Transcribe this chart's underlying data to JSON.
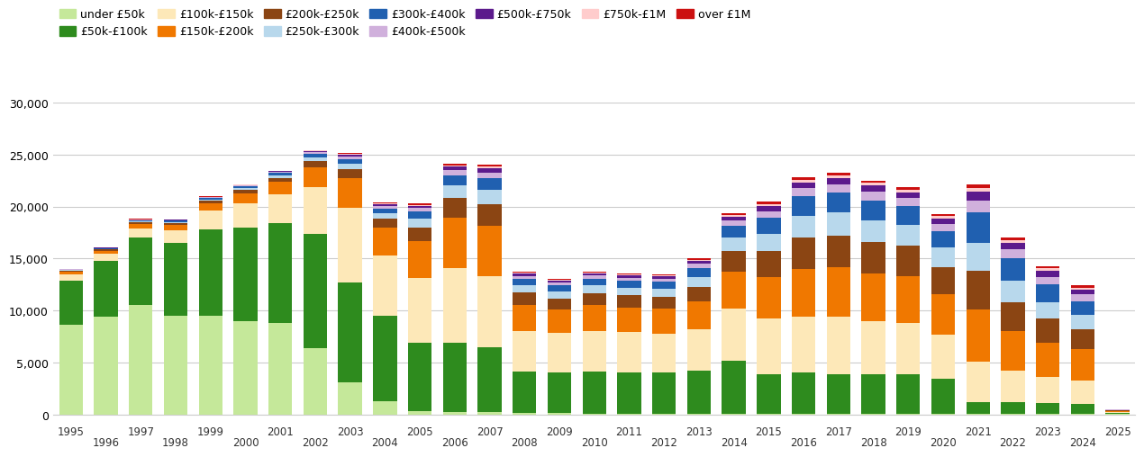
{
  "years": [
    1995,
    1996,
    1997,
    1998,
    1999,
    2000,
    2001,
    2002,
    2003,
    2004,
    2005,
    2006,
    2007,
    2008,
    2009,
    2010,
    2011,
    2012,
    2013,
    2014,
    2015,
    2016,
    2017,
    2018,
    2019,
    2020,
    2021,
    2022,
    2023,
    2024,
    2025
  ],
  "series": {
    "under_50k": [
      8600,
      9400,
      10500,
      9500,
      9500,
      9000,
      8800,
      6400,
      3100,
      1300,
      300,
      200,
      200,
      150,
      120,
      100,
      100,
      100,
      100,
      100,
      100,
      100,
      100,
      100,
      100,
      100,
      100,
      100,
      100,
      100,
      50
    ],
    "50k_100k": [
      4300,
      5400,
      6500,
      7000,
      8300,
      9000,
      9600,
      11000,
      9600,
      8200,
      6600,
      6700,
      6300,
      4000,
      3900,
      4000,
      3900,
      3900,
      4100,
      5100,
      3800,
      3900,
      3800,
      3800,
      3800,
      3300,
      1100,
      1100,
      1000,
      900,
      100
    ],
    "100k_150k": [
      600,
      650,
      900,
      1200,
      1800,
      2300,
      2800,
      4500,
      7200,
      5800,
      6200,
      7200,
      6800,
      3900,
      3800,
      3900,
      3900,
      3800,
      4000,
      5000,
      5300,
      5400,
      5500,
      5100,
      4900,
      4300,
      3900,
      3000,
      2500,
      2300,
      100
    ],
    "150k_200k": [
      250,
      280,
      430,
      530,
      700,
      950,
      1150,
      1900,
      2800,
      2700,
      3600,
      4800,
      4800,
      2500,
      2300,
      2500,
      2400,
      2400,
      2700,
      3500,
      4000,
      4600,
      4800,
      4600,
      4500,
      3900,
      5000,
      3800,
      3300,
      3000,
      100
    ],
    "200k_250k": [
      90,
      120,
      180,
      190,
      230,
      320,
      420,
      560,
      850,
      850,
      1250,
      1900,
      2100,
      1150,
      1050,
      1150,
      1150,
      1150,
      1400,
      2000,
      2500,
      3000,
      3000,
      3000,
      2900,
      2600,
      3700,
      2800,
      2300,
      1900,
      50
    ],
    "250k_300k": [
      50,
      65,
      90,
      95,
      140,
      190,
      240,
      370,
      560,
      510,
      850,
      1200,
      1400,
      760,
      660,
      760,
      760,
      760,
      950,
      1300,
      1700,
      2100,
      2200,
      2100,
      2050,
      1850,
      2700,
      2100,
      1600,
      1400,
      25
    ],
    "300k_400k": [
      45,
      60,
      85,
      105,
      135,
      165,
      200,
      320,
      460,
      460,
      700,
      1000,
      1100,
      600,
      560,
      650,
      650,
      650,
      840,
      1150,
      1500,
      1900,
      1900,
      1900,
      1800,
      1600,
      2900,
      2100,
      1700,
      1300,
      25
    ],
    "400k_500k": [
      25,
      35,
      50,
      60,
      70,
      90,
      105,
      160,
      230,
      230,
      330,
      470,
      550,
      275,
      260,
      295,
      295,
      295,
      390,
      510,
      660,
      760,
      800,
      800,
      760,
      700,
      1150,
      850,
      750,
      650,
      15
    ],
    "500k_750k": [
      18,
      25,
      35,
      42,
      52,
      62,
      80,
      118,
      165,
      165,
      240,
      350,
      400,
      200,
      185,
      210,
      210,
      210,
      280,
      370,
      490,
      560,
      600,
      600,
      560,
      520,
      850,
      650,
      560,
      460,
      12
    ],
    "750k_1M": [
      8,
      10,
      15,
      17,
      22,
      26,
      30,
      48,
      72,
      68,
      100,
      148,
      166,
      90,
      82,
      90,
      90,
      90,
      118,
      162,
      202,
      240,
      260,
      260,
      240,
      218,
      358,
      276,
      228,
      200,
      6
    ],
    "over_1M": [
      8,
      10,
      15,
      17,
      22,
      26,
      30,
      48,
      72,
      68,
      100,
      148,
      166,
      90,
      82,
      90,
      90,
      90,
      118,
      140,
      185,
      215,
      245,
      245,
      225,
      205,
      330,
      260,
      215,
      185,
      6
    ]
  },
  "colors": {
    "under_50k": "#c5e89a",
    "50k_100k": "#2e8b1e",
    "100k_150k": "#fde8b8",
    "150k_200k": "#f07800",
    "200k_250k": "#8b4513",
    "250k_300k": "#b8d8ec",
    "300k_400k": "#2060b0",
    "400k_500k": "#d0b0dc",
    "500k_750k": "#5c1a8c",
    "750k_1M": "#ffcccc",
    "over_1M": "#cc1010"
  },
  "legend_labels": {
    "under_50k": "under £50k",
    "50k_100k": "£50k-£100k",
    "100k_150k": "£100k-£150k",
    "150k_200k": "£150k-£200k",
    "200k_250k": "£200k-£250k",
    "250k_300k": "£250k-£300k",
    "300k_400k": "£300k-£400k",
    "400k_500k": "£400k-£500k",
    "500k_750k": "£500k-£750k",
    "750k_1M": "£750k-£1M",
    "over_1M": "over £1M"
  },
  "ylim": [
    0,
    30000
  ],
  "yticks": [
    0,
    5000,
    10000,
    15000,
    20000,
    25000,
    30000
  ],
  "background_color": "#ffffff",
  "grid_color": "#cccccc"
}
